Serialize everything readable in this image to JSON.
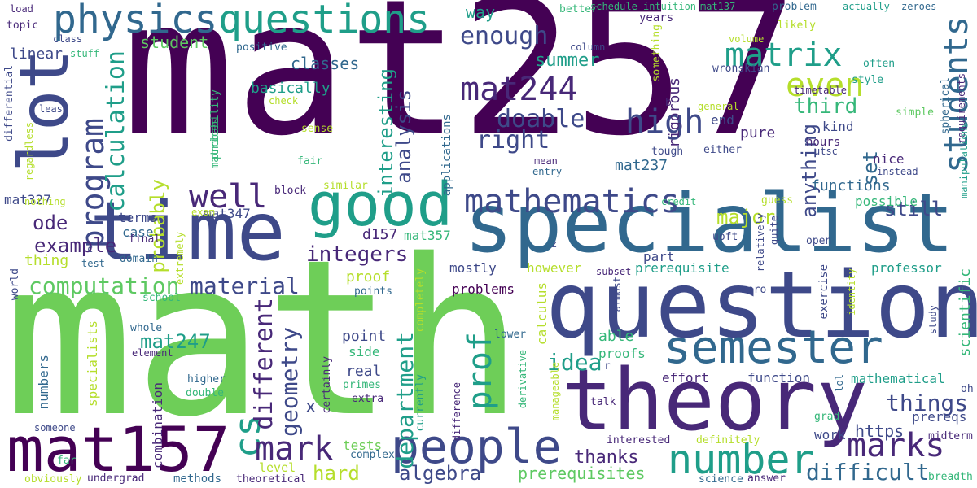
{
  "words": {
    "mat257": "mat257",
    "math": "math",
    "question": "question",
    "theory": "theory",
    "specialist": "specialist",
    "time": "time",
    "lot": "lot",
    "good": "good",
    "mat157": "mat157",
    "people": "people",
    "number": "number",
    "semester": "semester",
    "physics": "physics",
    "questions": "questions",
    "mathematics": "mathematics",
    "mat244": "mat244",
    "students": "students",
    "matrix": "matrix",
    "high": "high",
    "program": "program",
    "well": "well",
    "cs": "cs",
    "mark": "mark",
    "marks": "marks",
    "even": "even",
    "prof": "prof",
    "calculation": "calculation",
    "right": "right",
    "doable": "doable",
    "enough": "enough",
    "different": "different",
    "geometry": "geometry",
    "department": "department",
    "computation": "computation",
    "material": "material",
    "example": "example",
    "integers": "integers",
    "idea": "idea",
    "mat247": "mat247",
    "things": "things",
    "difficult": "difficult",
    "hard": "hard",
    "algebra": "algebra",
    "thanks": "thanks",
    "prerequisites": "prerequisites",
    "summer": "summer",
    "third": "third",
    "interesting": "interesting",
    "analysis": "analysis",
    "probably": "probably",
    "ode": "ode",
    "major": "major",
    "set": "set",
    "still": "still",
    "anything": "anything",
    "way": "way",
    "classes": "classes",
    "student": "student",
    "basically": "basically",
    "linear": "linear",
    "mat237": "mat237",
    "rigorous": "rigorous",
    "pure": "pure",
    "end": "end",
    "kind": "kind",
    "nice": "nice",
    "hours": "hours",
    "functions": "functions",
    "possible": "possible",
    "scientific": "scientific",
    "mathematical": "mathematical",
    "https": "https",
    "prereqs": "prereqs",
    "proof": "proof",
    "real": "real",
    "point": "point",
    "side": "side",
    "able": "able",
    "proofs": "proofs",
    "effort": "effort",
    "function": "function",
    "professor": "professor",
    "work": "work",
    "tests": "tests",
    "level": "level",
    "mostly": "mostly",
    "problems": "problems",
    "however": "however",
    "prerequisite": "prerequisite",
    "calculus": "calculus",
    "d157": "d157",
    "mat357": "mat357",
    "part": "part",
    "x": "x",
    "thing": "thing",
    "case": "case",
    "terms": "terms",
    "mat347": "mat347",
    "mat327": "mat327",
    "specialists": "specialists",
    "numbers": "numbers",
    "combination": "combination",
    "methods": "methods",
    "undergrad": "undergrad",
    "theoretical": "theoretical",
    "complex": "complex",
    "completely": "completely",
    "currently": "currently",
    "interested": "interested",
    "definitely": "definitely",
    "science": "science",
    "answer": "answer",
    "breadth": "breadth",
    "midterm": "midterm",
    "grad": "grad",
    "talk": "talk",
    "lower": "lower",
    "extra": "extra",
    "primes": "primes",
    "certainly": "certainly",
    "higher": "higher",
    "double": "double",
    "whole": "whole",
    "element": "element",
    "school": "school",
    "points": "points",
    "world": "world",
    "test": "test",
    "domain": "domain",
    "final": "final",
    "block": "block",
    "similar": "similar",
    "exam": "exam",
    "extremely": "extremely",
    "nothing": "nothing",
    "regardless": "regardless",
    "fair": "fair",
    "matrices": "matrices",
    "probability": "probability",
    "sense": "sense",
    "check": "check",
    "positive": "positive",
    "stuff": "stuff",
    "load": "load",
    "topic": "topic",
    "class": "class",
    "differential": "differential",
    "least": "least",
    "better": "better",
    "schedule": "schedule",
    "intuition": "intuition",
    "mat137": "mat137",
    "years": "years",
    "something": "something",
    "column": "column",
    "volume": "volume",
    "wronskian": "wronskian",
    "general": "general",
    "b": "b",
    "timetable": "timetable",
    "problem": "problem",
    "likely": "likely",
    "actually": "actually",
    "zeroes": "zeroes",
    "often": "often",
    "style": "style",
    "spherical": "spherical",
    "requirements": "requirements",
    "simple": "simple",
    "manipulations": "manipulations",
    "utsc": "utsc",
    "instead": "instead",
    "either": "either",
    "tough": "tough",
    "credit": "credit",
    "guess": "guess",
    "mean": "mean",
    "entry": "entry",
    "applications": "applications",
    "uoft": "uoft",
    "open": "open",
    "quite": "quite",
    "relatively": "relatively",
    "zero": "zero",
    "almost": "almost",
    "subset": "subset",
    "r": "r",
    "exercise": "exercise",
    "lol": "lol",
    "identity": "identity",
    "study": "study",
    "oh": "oh",
    "derivative": "derivative",
    "manageable": "manageable",
    "difference": "difference",
    "z": "z",
    "c": "c",
    "someone": "someone",
    "far": "far",
    "obviously": "obviously"
  }
}
